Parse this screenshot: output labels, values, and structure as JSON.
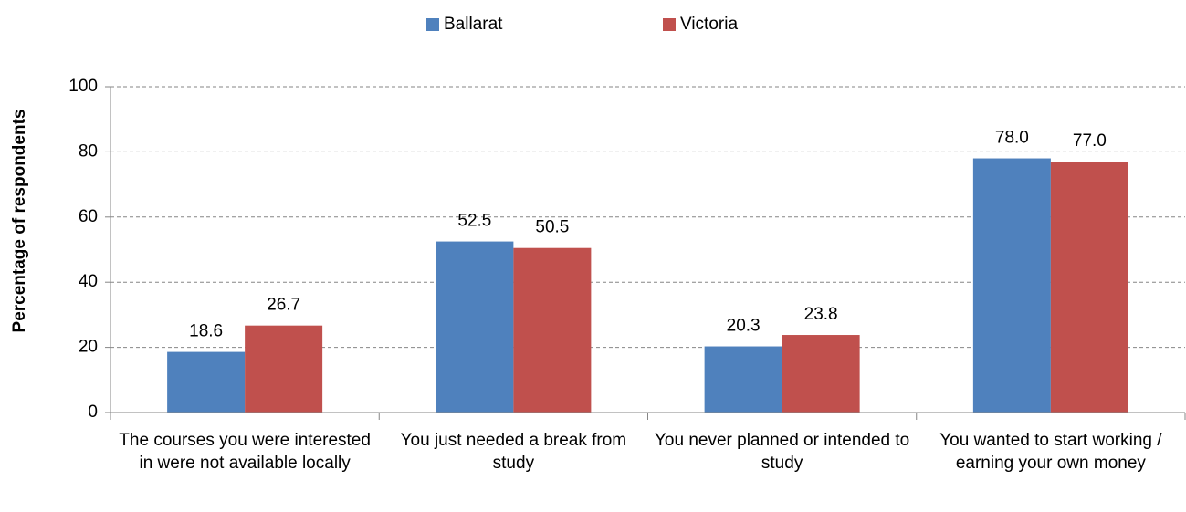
{
  "chart_data": {
    "type": "bar",
    "categories": [
      "The courses you were interested in were not available locally",
      "You just needed a break from study",
      "You never planned or intended to study",
      "You wanted to start working / earning your own money"
    ],
    "series": [
      {
        "name": "Ballarat",
        "color": "#4f81bd",
        "values": [
          18.6,
          52.5,
          20.3,
          78.0
        ],
        "value_labels": [
          "18.6",
          "52.5",
          "20.3",
          "78.0"
        ]
      },
      {
        "name": "Victoria",
        "color": "#c0504d",
        "values": [
          26.7,
          50.5,
          23.8,
          77.0
        ],
        "value_labels": [
          "26.7",
          "50.5",
          "23.8",
          "77.0"
        ]
      }
    ],
    "y_label": "Percentage of respondents",
    "ylim": [
      0,
      100
    ],
    "yticks": [
      0,
      20,
      40,
      60,
      80,
      100
    ],
    "grid": true,
    "legend": "top"
  }
}
